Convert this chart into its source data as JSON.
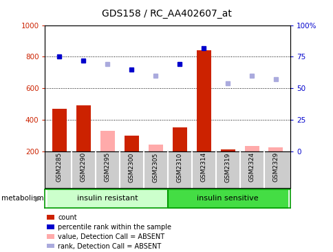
{
  "title": "GDS158 / RC_AA402607_at",
  "samples": [
    "GSM2285",
    "GSM2290",
    "GSM2295",
    "GSM2300",
    "GSM2305",
    "GSM2310",
    "GSM2314",
    "GSM2319",
    "GSM2324",
    "GSM2329"
  ],
  "bar_values": [
    470,
    490,
    330,
    300,
    240,
    350,
    840,
    210,
    235,
    225
  ],
  "bar_absent": [
    false,
    false,
    true,
    false,
    true,
    false,
    false,
    false,
    true,
    true
  ],
  "rank_values": [
    75,
    72,
    69,
    65,
    60,
    69,
    82,
    54,
    60,
    57
  ],
  "rank_absent": [
    false,
    false,
    true,
    false,
    true,
    false,
    false,
    true,
    true,
    true
  ],
  "ylim_left": [
    200,
    1000
  ],
  "ylim_right": [
    0,
    100
  ],
  "yticks_left": [
    200,
    400,
    600,
    800,
    1000
  ],
  "yticks_right": [
    0,
    25,
    50,
    75,
    100
  ],
  "bar_color_present": "#cc2200",
  "bar_color_absent": "#ffaaaa",
  "rank_color_present": "#0000cc",
  "rank_color_absent": "#aaaadd",
  "group_ir_color": "#ccffcc",
  "group_is_color": "#44dd44",
  "group_border_color": "#009900",
  "bg_color": "#ffffff",
  "tick_area_color": "#cccccc",
  "dotted_grid_color": "#000000",
  "ytick_color_left": "#cc2200",
  "ytick_color_right": "#0000cc",
  "legend_items": [
    [
      "#cc2200",
      "count"
    ],
    [
      "#0000cc",
      "percentile rank within the sample"
    ],
    [
      "#ffaaaa",
      "value, Detection Call = ABSENT"
    ],
    [
      "#aaaadd",
      "rank, Detection Call = ABSENT"
    ]
  ]
}
